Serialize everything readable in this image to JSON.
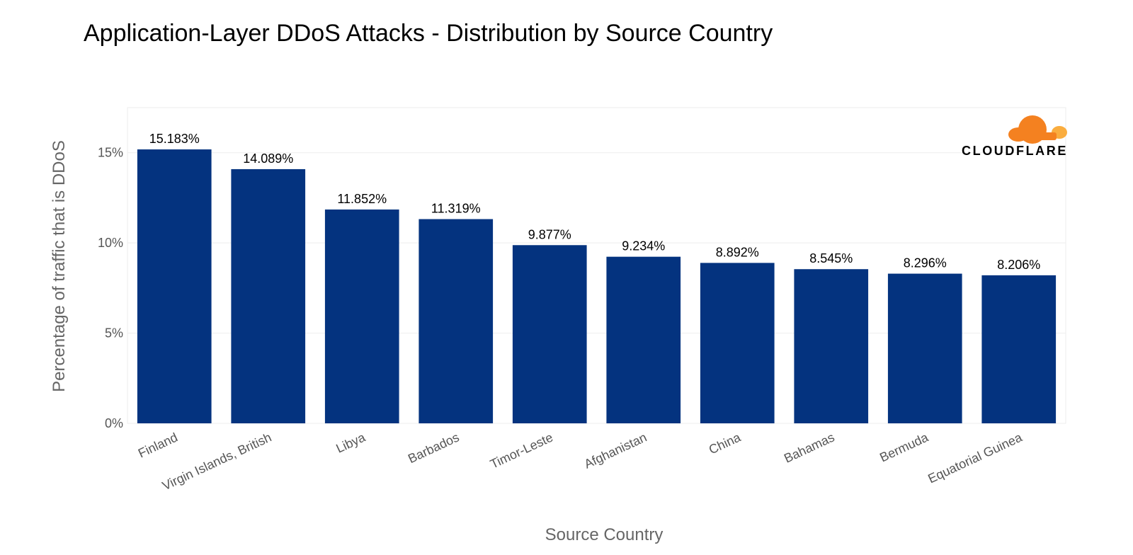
{
  "colors": {
    "bar": "#04337f",
    "logo_orange": "#f48120",
    "logo_light": "#faad3f"
  },
  "logo": {
    "text": "CLOUDFLARE"
  },
  "chart_data": {
    "type": "bar",
    "title": "Application-Layer DDoS Attacks - Distribution by Source Country",
    "xlabel": "Source Country",
    "ylabel": "Percentage of traffic that is DDoS",
    "ylim": [
      0,
      17.5
    ],
    "yticks": [
      0,
      5,
      10,
      15
    ],
    "ytick_labels": [
      "0%",
      "5%",
      "10%",
      "15%"
    ],
    "grid": true,
    "categories": [
      "Finland",
      "Virgin Islands, British",
      "Libya",
      "Barbados",
      "Timor-Leste",
      "Afghanistan",
      "China",
      "Bahamas",
      "Bermuda",
      "Equatorial Guinea"
    ],
    "values": [
      15.183,
      14.089,
      11.852,
      11.319,
      9.877,
      9.234,
      8.892,
      8.545,
      8.296,
      8.206
    ],
    "data_labels": [
      "15.183%",
      "14.089%",
      "11.852%",
      "11.319%",
      "9.877%",
      "9.234%",
      "8.892%",
      "8.545%",
      "8.296%",
      "8.206%"
    ]
  }
}
